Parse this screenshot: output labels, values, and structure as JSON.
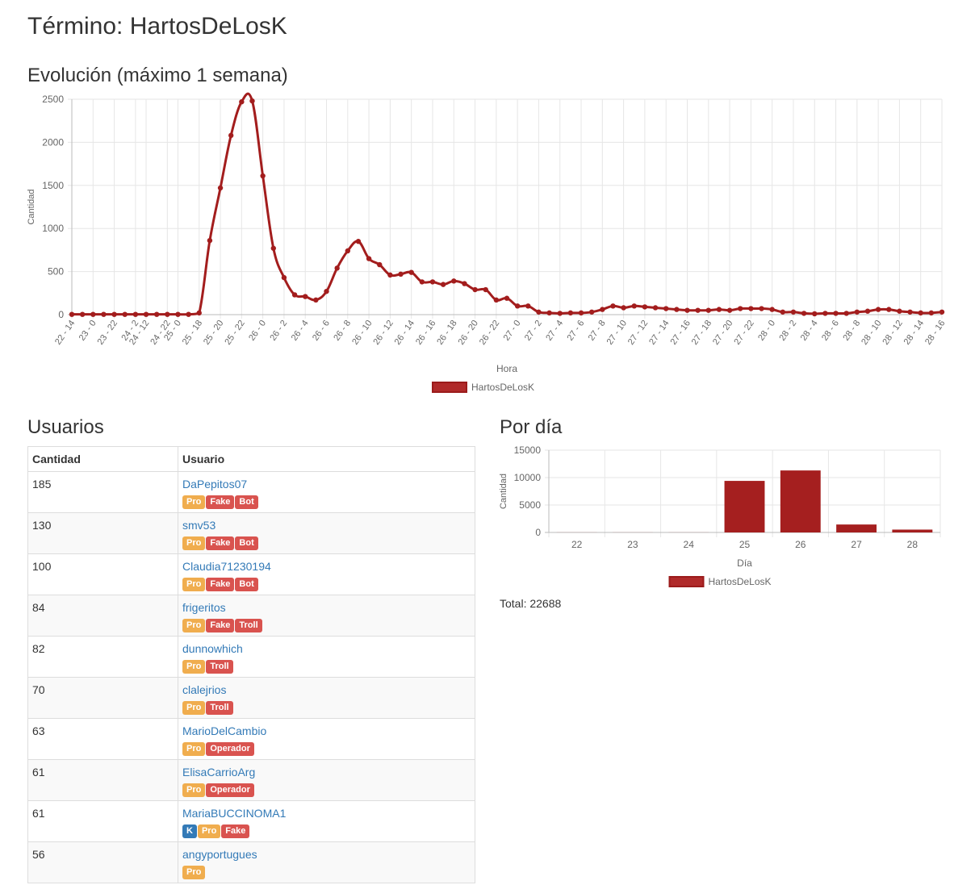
{
  "page": {
    "title": "Término: HartosDeLosK",
    "evolution_title": "Evolución (máximo 1 semana)",
    "users_title": "Usuarios",
    "per_day_title": "Por día",
    "total_label": "Total: 22688"
  },
  "colors": {
    "series": "#a31d1d",
    "series_fill": "#a51f1f",
    "pro": "#f0ad4e",
    "red_badge": "#d9534f",
    "blue_badge": "#337ab7",
    "link": "#337ab7"
  },
  "users_table": {
    "headers": [
      "Cantidad",
      "Usuario"
    ],
    "rows": [
      {
        "count": "185",
        "user": "DaPepitos07",
        "badges": [
          {
            "label": "Pro",
            "color": "pro"
          },
          {
            "label": "Fake",
            "color": "red"
          },
          {
            "label": "Bot",
            "color": "red"
          }
        ]
      },
      {
        "count": "130",
        "user": "smv53",
        "badges": [
          {
            "label": "Pro",
            "color": "pro"
          },
          {
            "label": "Fake",
            "color": "red"
          },
          {
            "label": "Bot",
            "color": "red"
          }
        ]
      },
      {
        "count": "100",
        "user": "Claudia71230194",
        "badges": [
          {
            "label": "Pro",
            "color": "pro"
          },
          {
            "label": "Fake",
            "color": "red"
          },
          {
            "label": "Bot",
            "color": "red"
          }
        ]
      },
      {
        "count": "84",
        "user": "frigeritos",
        "badges": [
          {
            "label": "Pro",
            "color": "pro"
          },
          {
            "label": "Fake",
            "color": "red"
          },
          {
            "label": "Troll",
            "color": "red"
          }
        ]
      },
      {
        "count": "82",
        "user": "dunnowhich",
        "badges": [
          {
            "label": "Pro",
            "color": "pro"
          },
          {
            "label": "Troll",
            "color": "red"
          }
        ]
      },
      {
        "count": "70",
        "user": "clalejrios",
        "badges": [
          {
            "label": "Pro",
            "color": "pro"
          },
          {
            "label": "Troll",
            "color": "red"
          }
        ]
      },
      {
        "count": "63",
        "user": "MarioDelCambio",
        "badges": [
          {
            "label": "Pro",
            "color": "pro"
          },
          {
            "label": "Operador",
            "color": "red"
          }
        ]
      },
      {
        "count": "61",
        "user": "ElisaCarrioArg",
        "badges": [
          {
            "label": "Pro",
            "color": "pro"
          },
          {
            "label": "Operador",
            "color": "red"
          }
        ]
      },
      {
        "count": "61",
        "user": "MariaBUCCINOMA1",
        "badges": [
          {
            "label": "K",
            "color": "blue"
          },
          {
            "label": "Pro",
            "color": "pro"
          },
          {
            "label": "Fake",
            "color": "red"
          }
        ]
      },
      {
        "count": "56",
        "user": "angyportugues",
        "badges": [
          {
            "label": "Pro",
            "color": "pro"
          }
        ]
      }
    ]
  },
  "chart_data": [
    {
      "type": "line",
      "title": "",
      "xlabel": "Hora",
      "ylabel": "Cantidad",
      "ylim": [
        0,
        2500
      ],
      "yticks": [
        0,
        500,
        1000,
        1500,
        2000,
        2500
      ],
      "grid": true,
      "legend": "bottom",
      "x": [
        "22 - 14",
        "22 - 16",
        "23 - 0",
        "23 - 20",
        "23 - 22",
        "24 - 0",
        "24 - 2",
        "24 - 12",
        "24 - 14",
        "24 - 22",
        "25 - 0",
        "25 - 14",
        "25 - 18",
        "25 - 19",
        "25 - 20",
        "25 - 21",
        "25 - 22",
        "25 - 23",
        "26 - 0",
        "26 - 1",
        "26 - 2",
        "26 - 3",
        "26 - 4",
        "26 - 5",
        "26 - 6",
        "26 - 7",
        "26 - 8",
        "26 - 9",
        "26 - 10",
        "26 - 11",
        "26 - 12",
        "26 - 13",
        "26 - 14",
        "26 - 15",
        "26 - 16",
        "26 - 17",
        "26 - 18",
        "26 - 19",
        "26 - 20",
        "26 - 21",
        "26 - 22",
        "26 - 23",
        "27 - 0",
        "27 - 1",
        "27 - 2",
        "27 - 3",
        "27 - 4",
        "27 - 5",
        "27 - 6",
        "27 - 7",
        "27 - 8",
        "27 - 9",
        "27 - 10",
        "27 - 11",
        "27 - 12",
        "27 - 13",
        "27 - 14",
        "27 - 15",
        "27 - 16",
        "27 - 17",
        "27 - 18",
        "27 - 19",
        "27 - 20",
        "27 - 21",
        "27 - 22",
        "27 - 23",
        "28 - 0",
        "28 - 1",
        "28 - 2",
        "28 - 3",
        "28 - 4",
        "28 - 5",
        "28 - 6",
        "28 - 7",
        "28 - 8",
        "28 - 9",
        "28 - 10",
        "28 - 11",
        "28 - 12",
        "28 - 13",
        "28 - 14",
        "28 - 15",
        "28 - 16"
      ],
      "xtick_labels": [
        "22 - 14",
        "23 - 0",
        "23 - 22",
        "24 - 2",
        "24 - 12",
        "24 - 22",
        "25 - 0",
        "25 - 18",
        "25 - 20",
        "25 - 22",
        "26 - 0",
        "26 - 2",
        "26 - 4",
        "26 - 6",
        "26 - 8",
        "26 - 10",
        "26 - 12",
        "26 - 14",
        "26 - 16",
        "26 - 18",
        "26 - 20",
        "26 - 22",
        "27 - 0",
        "27 - 2",
        "27 - 4",
        "27 - 6",
        "27 - 8",
        "27 - 10",
        "27 - 12",
        "27 - 14",
        "27 - 16",
        "27 - 18",
        "27 - 20",
        "27 - 22",
        "28 - 0",
        "28 - 2",
        "28 - 4",
        "28 - 6",
        "28 - 8",
        "28 - 10",
        "28 - 12",
        "28 - 14",
        "28 - 16"
      ],
      "series": [
        {
          "name": "HartosDeLosK",
          "values": [
            3,
            3,
            3,
            3,
            3,
            3,
            3,
            3,
            3,
            3,
            3,
            3,
            20,
            860,
            1470,
            2080,
            2470,
            2480,
            1610,
            770,
            430,
            230,
            210,
            170,
            270,
            540,
            740,
            850,
            650,
            580,
            460,
            470,
            490,
            380,
            380,
            350,
            390,
            360,
            290,
            290,
            170,
            190,
            100,
            100,
            30,
            20,
            15,
            20,
            20,
            30,
            60,
            100,
            80,
            100,
            90,
            80,
            70,
            60,
            50,
            50,
            50,
            60,
            50,
            70,
            70,
            70,
            60,
            30,
            30,
            15,
            10,
            15,
            15,
            15,
            30,
            40,
            60,
            60,
            40,
            30,
            20,
            20,
            30
          ]
        }
      ]
    },
    {
      "type": "bar",
      "title": "",
      "xlabel": "Día",
      "ylabel": "Cantidad",
      "ylim": [
        0,
        15000
      ],
      "yticks": [
        0,
        5000,
        10000,
        15000
      ],
      "grid": true,
      "legend": "bottom",
      "categories": [
        "22",
        "23",
        "24",
        "25",
        "26",
        "27",
        "28"
      ],
      "series": [
        {
          "name": "HartosDeLosK",
          "values": [
            10,
            10,
            10,
            9400,
            11300,
            1450,
            520
          ]
        }
      ]
    }
  ]
}
